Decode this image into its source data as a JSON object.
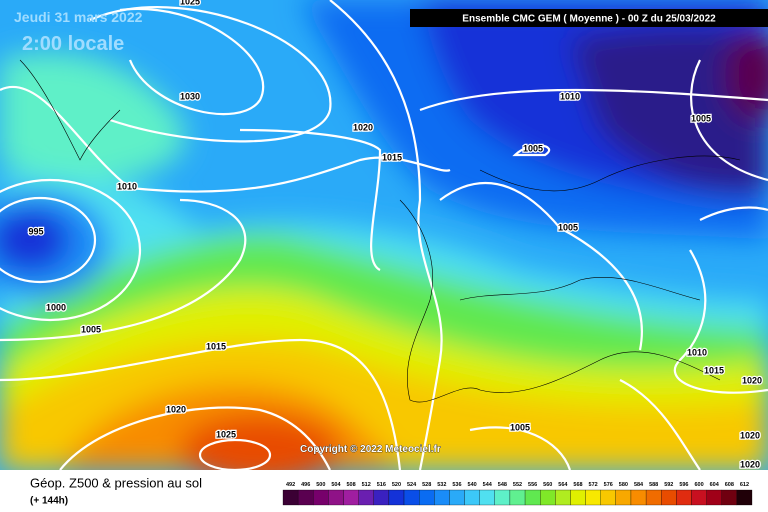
{
  "header": {
    "date": "Jeudi 31 mars 2022",
    "time": "2:00 locale",
    "model": "Ensemble CMC GEM  ( Moyenne )  - 00 Z du 25/03/2022"
  },
  "copyright": "Copyright © 2022 Meteociel.fr",
  "footer": {
    "title": "Géop. Z500 & pression au sol",
    "subtitle": "(+ 144h)"
  },
  "isobar_labels": [
    "1025",
    "1030",
    "1020",
    "1015",
    "1010",
    "1010",
    "1005",
    "1005",
    "1005",
    "995",
    "1000",
    "1005",
    "1015",
    "1020",
    "1025",
    "1010",
    "1015",
    "1020",
    "1005",
    "1020",
    "1020"
  ],
  "colorbar": {
    "labels": [
      492,
      496,
      500,
      504,
      508,
      512,
      516,
      520,
      524,
      528,
      532,
      536,
      540,
      544,
      548,
      552,
      556,
      560,
      564,
      568,
      572,
      576,
      580,
      584,
      588,
      592,
      596,
      600,
      604,
      608,
      612
    ],
    "colors": [
      "#3b0034",
      "#5a0050",
      "#77006b",
      "#8f1287",
      "#a01ea0",
      "#6a1fb0",
      "#3a21c0",
      "#1432d8",
      "#0a4ee8",
      "#0a6cf2",
      "#1a8cf8",
      "#2aaaf8",
      "#3cc8f8",
      "#50e0f0",
      "#5ef0c8",
      "#60f090",
      "#60e850",
      "#80e828",
      "#b0ec20",
      "#e0f000",
      "#f8e800",
      "#f8c800",
      "#f8a800",
      "#f88c00",
      "#f06c00",
      "#e84c00",
      "#e02c10",
      "#c81020",
      "#a00018",
      "#700010",
      "#200008"
    ]
  }
}
